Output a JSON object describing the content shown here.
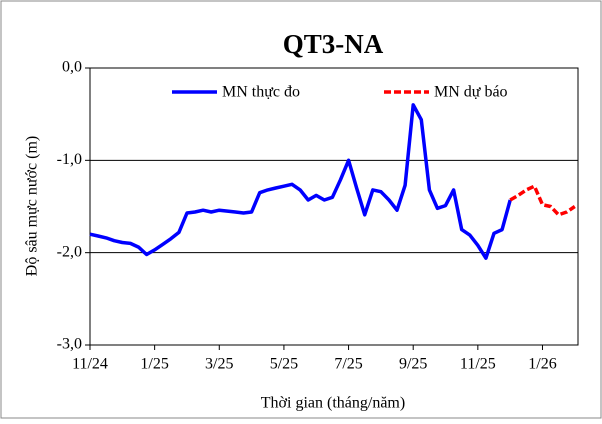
{
  "chart_data": {
    "type": "line",
    "title": "QT3-NA",
    "x_label": "Thời gian (tháng/năm)",
    "y_label": "Độ sâu mực nước (m)",
    "categories": [
      "11/24",
      null,
      null,
      null,
      null,
      null,
      null,
      null,
      "1/25",
      null,
      null,
      null,
      null,
      null,
      null,
      null,
      "3/25",
      null,
      null,
      null,
      null,
      null,
      null,
      null,
      "5/25",
      null,
      null,
      null,
      null,
      null,
      null,
      null,
      "7/25",
      null,
      null,
      null,
      null,
      null,
      null,
      null,
      "9/25",
      null,
      null,
      null,
      null,
      null,
      null,
      null,
      "11/25",
      null,
      null,
      null,
      null,
      null,
      null,
      null,
      "1/26",
      null,
      null,
      null,
      null
    ],
    "series": [
      {
        "name": "MN thực đo",
        "color": "#0000ff",
        "dash": false,
        "values": [
          -1.8,
          -1.82,
          -1.84,
          -1.87,
          -1.89,
          -1.9,
          -1.94,
          -2.02,
          -1.97,
          -1.91,
          -1.85,
          -1.78,
          -1.57,
          -1.56,
          -1.54,
          -1.56,
          -1.54,
          -1.55,
          -1.56,
          -1.57,
          -1.56,
          -1.35,
          -1.32,
          -1.3,
          -1.28,
          -1.26,
          -1.32,
          -1.43,
          -1.38,
          -1.43,
          -1.4,
          -1.21,
          -1.0,
          -1.3,
          -1.59,
          -1.32,
          -1.34,
          -1.43,
          -1.54,
          -1.27,
          -0.4,
          -0.56,
          -1.32,
          -1.52,
          -1.49,
          -1.32,
          -1.75,
          -1.81,
          -1.92,
          -2.06,
          -1.79,
          -1.75,
          -1.43,
          null,
          null,
          null,
          null,
          null,
          null,
          null,
          null
        ]
      },
      {
        "name": "MN dự báo",
        "color": "#ff0000",
        "dash": true,
        "values": [
          null,
          null,
          null,
          null,
          null,
          null,
          null,
          null,
          null,
          null,
          null,
          null,
          null,
          null,
          null,
          null,
          null,
          null,
          null,
          null,
          null,
          null,
          null,
          null,
          null,
          null,
          null,
          null,
          null,
          null,
          null,
          null,
          null,
          null,
          null,
          null,
          null,
          null,
          null,
          null,
          null,
          null,
          null,
          null,
          null,
          null,
          null,
          null,
          null,
          null,
          null,
          null,
          -1.43,
          -1.38,
          -1.32,
          -1.28,
          -1.48,
          -1.5,
          -1.59,
          -1.56,
          -1.5
        ]
      }
    ],
    "ylim": [
      -3,
      0
    ],
    "yticks": [
      {
        "value": 0,
        "label": "0,0"
      },
      {
        "value": -1,
        "label": "-1,0"
      },
      {
        "value": -2,
        "label": "-2,0"
      },
      {
        "value": -3,
        "label": "-3,0"
      }
    ],
    "grid": true
  }
}
